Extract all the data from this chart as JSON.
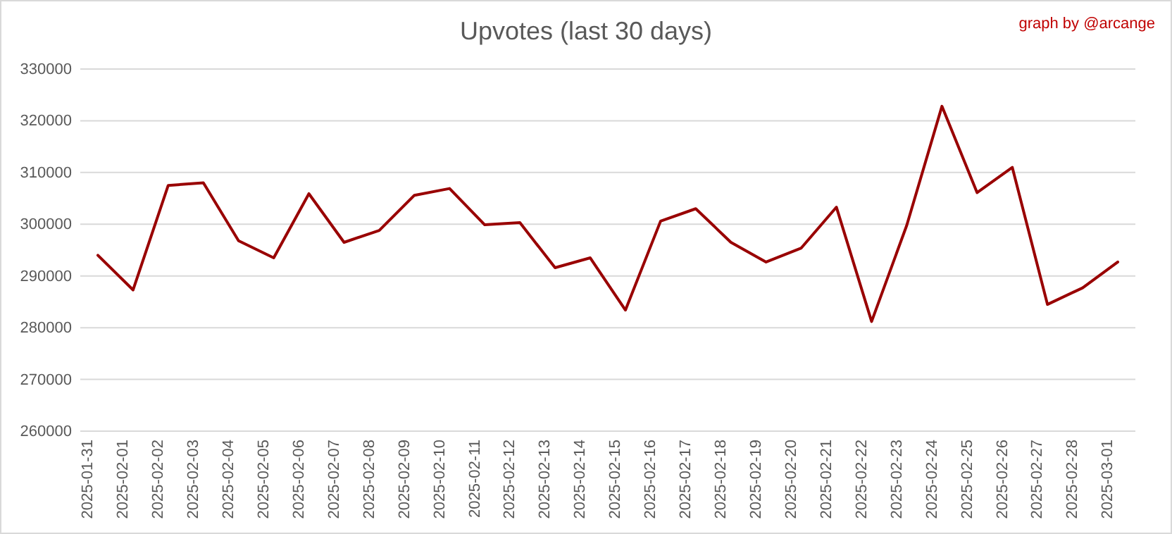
{
  "chart_data": {
    "type": "line",
    "title": "Upvotes (last 30 days)",
    "annotations": [
      "graph by @arcange"
    ],
    "categories": [
      "2025-01-31",
      "2025-02-01",
      "2025-02-02",
      "2025-02-03",
      "2025-02-04",
      "2025-02-05",
      "2025-02-06",
      "2025-02-07",
      "2025-02-08",
      "2025-02-09",
      "2025-02-10",
      "2025-02-11",
      "2025-02-12",
      "2025-02-13",
      "2025-02-14",
      "2025-02-15",
      "2025-02-16",
      "2025-02-17",
      "2025-02-18",
      "2025-02-19",
      "2025-02-20",
      "2025-02-21",
      "2025-02-22",
      "2025-02-23",
      "2025-02-24",
      "2025-02-25",
      "2025-02-26",
      "2025-02-27",
      "2025-02-28",
      "2025-03-01"
    ],
    "series": [
      {
        "color": "#990000",
        "values": [
          294000,
          287300,
          307500,
          308000,
          296800,
          293500,
          305900,
          296500,
          298800,
          305600,
          306900,
          299900,
          300300,
          291600,
          293500,
          283400,
          300600,
          303000,
          296500,
          292700,
          295400,
          303300,
          281200,
          299800,
          322800,
          306100,
          311000,
          284500,
          287700,
          292700
        ]
      }
    ],
    "ylim": [
      260000,
      330000
    ],
    "yticks": [
      260000,
      270000,
      280000,
      290000,
      300000,
      310000,
      320000,
      330000
    ],
    "grid": "y",
    "marker": "none",
    "line_style": "solid"
  }
}
